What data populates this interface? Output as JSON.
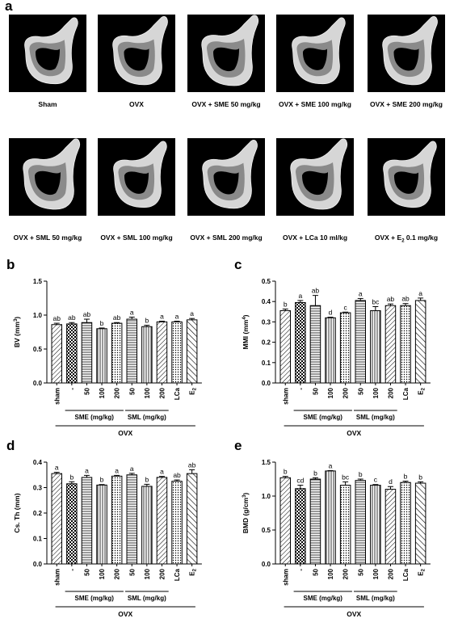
{
  "panel_a": {
    "letter": "a",
    "images": [
      {
        "label": "Sham"
      },
      {
        "label": "OVX"
      },
      {
        "label": "OVX + SME 50 mg/kg"
      },
      {
        "label": "OVX + SME 100 mg/kg"
      },
      {
        "label": "OVX + SME 200 mg/kg"
      },
      {
        "label": "OVX + SML 50 mg/kg"
      },
      {
        "label": "OVX + SML 100 mg/kg"
      },
      {
        "label": "OVX + SML 200 mg/kg"
      },
      {
        "label": "OVX + LCa 10 ml/kg"
      },
      {
        "label_prefix": "OVX + E",
        "label_sub": "2",
        "label_suffix": " 0.1 mg/kg"
      }
    ]
  },
  "chart_data": [
    {
      "letter": "b",
      "type": "bar",
      "ylabel_text": "BV (mm",
      "ylabel_sup": "3",
      "ylabel_end": ")",
      "ylim": [
        0,
        1.5
      ],
      "yticks": [
        "0.0",
        "0.5",
        "1.0",
        "1.5"
      ],
      "categories": [
        "sham",
        "-",
        "50",
        "100",
        "200",
        "50",
        "100",
        "200",
        "LCa",
        "E2"
      ],
      "values": [
        0.86,
        0.87,
        0.89,
        0.8,
        0.88,
        0.94,
        0.83,
        0.9,
        0.9,
        0.93
      ],
      "errors": [
        0.02,
        0.02,
        0.05,
        0.01,
        0.01,
        0.03,
        0.02,
        0.01,
        0.01,
        0.02
      ],
      "letters": [
        "ab",
        "ab",
        "ab",
        "b",
        "ab",
        "a",
        "b",
        "a",
        "a",
        "a"
      ],
      "group1": "SME (mg/kg)",
      "group2": "SML (mg/kg)",
      "group_all": "OVX"
    },
    {
      "letter": "c",
      "type": "bar",
      "ylabel_text": "MMI (mm",
      "ylabel_sup": "4",
      "ylabel_end": ")",
      "ylim": [
        0,
        0.5
      ],
      "yticks": [
        "0.0",
        "0.1",
        "0.2",
        "0.3",
        "0.4",
        "0.5"
      ],
      "categories": [
        "sham",
        "-",
        "50",
        "100",
        "200",
        "50",
        "100",
        "200",
        "LCa",
        "E2"
      ],
      "values": [
        0.355,
        0.395,
        0.38,
        0.32,
        0.345,
        0.405,
        0.355,
        0.38,
        0.38,
        0.405
      ],
      "errors": [
        0.008,
        0.01,
        0.05,
        0.003,
        0.003,
        0.01,
        0.02,
        0.008,
        0.01,
        0.012
      ],
      "letters": [
        "b",
        "a",
        "ab",
        "d",
        "c",
        "a",
        "bc",
        "ab",
        "ab",
        "a"
      ],
      "group1": "SME (mg/kg)",
      "group2": "SML (mg/kg)",
      "group_all": "OVX"
    },
    {
      "letter": "d",
      "type": "bar",
      "ylabel_text": "Cs. Th (mm)",
      "ylabel_sup": "",
      "ylabel_end": "",
      "ylim": [
        0,
        0.4
      ],
      "yticks": [
        "0.0",
        "0.1",
        "0.2",
        "0.3",
        "0.4"
      ],
      "categories": [
        "sham",
        "-",
        "50",
        "100",
        "200",
        "50",
        "100",
        "200",
        "LCa",
        "E2"
      ],
      "values": [
        0.355,
        0.315,
        0.34,
        0.31,
        0.345,
        0.35,
        0.305,
        0.34,
        0.325,
        0.355
      ],
      "errors": [
        0.005,
        0.008,
        0.008,
        0.002,
        0.003,
        0.006,
        0.008,
        0.004,
        0.005,
        0.015
      ],
      "letters": [
        "a",
        "b",
        "a",
        "b",
        "a",
        "a",
        "b",
        "a",
        "ab",
        "ab"
      ],
      "group1": "SME (mg/kg)",
      "group2": "SML (mg/kg)",
      "group_all": "OVX"
    },
    {
      "letter": "e",
      "type": "bar",
      "ylabel_text": "BMD (g/cm",
      "ylabel_sup": "3",
      "ylabel_end": ")",
      "ylim": [
        0,
        1.5
      ],
      "yticks": [
        "0.0",
        "0.5",
        "1.0",
        "1.5"
      ],
      "categories": [
        "sham",
        "-",
        "50",
        "100",
        "200",
        "50",
        "100",
        "200",
        "LCa",
        "E2"
      ],
      "values": [
        1.27,
        1.11,
        1.25,
        1.37,
        1.16,
        1.23,
        1.16,
        1.1,
        1.2,
        1.19
      ],
      "errors": [
        0.02,
        0.05,
        0.02,
        0.005,
        0.05,
        0.02,
        0.01,
        0.04,
        0.02,
        0.02
      ],
      "letters": [
        "b",
        "cd",
        "b",
        "a",
        "bc",
        "b",
        "c",
        "d",
        "b",
        "b"
      ],
      "group1": "SME (mg/kg)",
      "group2": "SML (mg/kg)",
      "group_all": "OVX"
    }
  ],
  "colors": {
    "bar_stroke": "#000000",
    "bar_fill": "#ffffff",
    "tile_bg": "#000000",
    "bone": "#d6d6d6",
    "bone_shadow": "#8a8a8a"
  }
}
